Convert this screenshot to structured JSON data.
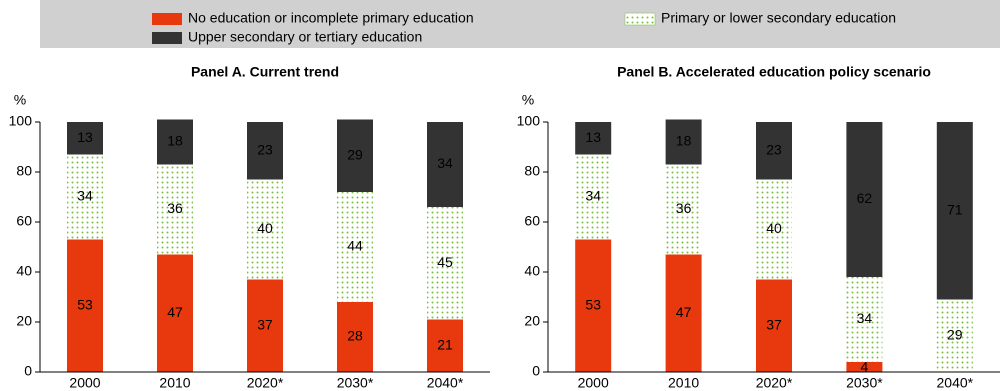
{
  "legend": {
    "series": [
      {
        "name": "No education or incomplete primary education",
        "color": "#e8380d"
      },
      {
        "name": "Primary or lower secondary education",
        "color": "#7dbf3f"
      },
      {
        "name": "Upper secondary or tertiary education",
        "color": "#333333"
      }
    ]
  },
  "chart_data": [
    {
      "type": "bar",
      "stacked": true,
      "title": "Panel A. Current trend",
      "y_label": "%",
      "categories": [
        "2000",
        "2010",
        "2020*",
        "2030*",
        "2040*"
      ],
      "series": [
        {
          "values": [
            53,
            47,
            37,
            28,
            21
          ]
        },
        {
          "values": [
            34,
            36,
            40,
            44,
            45
          ]
        },
        {
          "values": [
            13,
            18,
            23,
            29,
            34
          ]
        }
      ],
      "ylim": [
        0,
        100
      ],
      "yticks": [
        0,
        20,
        40,
        60,
        80,
        100
      ]
    },
    {
      "type": "bar",
      "stacked": true,
      "title": "Panel B. Accelerated education policy scenario",
      "y_label": "%",
      "categories": [
        "2000",
        "2010",
        "2020*",
        "2030*",
        "2040*"
      ],
      "series": [
        {
          "values": [
            53,
            47,
            37,
            4,
            0
          ]
        },
        {
          "values": [
            34,
            36,
            40,
            34,
            29
          ]
        },
        {
          "values": [
            13,
            18,
            23,
            62,
            71
          ]
        }
      ],
      "ylim": [
        0,
        100
      ],
      "yticks": [
        0,
        20,
        40,
        60,
        80,
        100
      ]
    }
  ]
}
